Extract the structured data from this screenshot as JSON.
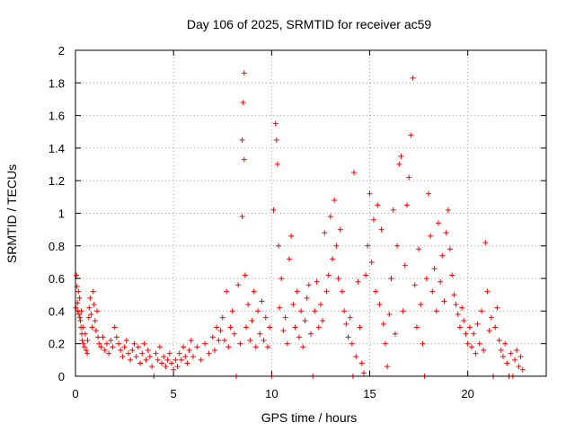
{
  "chart_data": {
    "type": "scatter",
    "title": "Day 106 of 2025, SRMTID for receiver ac59",
    "xlabel": "GPS time / hours",
    "ylabel": "SRMTID / TECUs",
    "xlim": [
      0,
      24
    ],
    "ylim": [
      0,
      2
    ],
    "xticks": [
      0,
      5,
      10,
      15,
      20
    ],
    "xtick_labels": [
      "0",
      "5",
      "10",
      "15",
      "20"
    ],
    "yticks": [
      0,
      0.2,
      0.4,
      0.6,
      0.8,
      1,
      1.2,
      1.4,
      1.6,
      1.8,
      2
    ],
    "ytick_labels": [
      "0",
      "0.2",
      "0.4",
      "0.6",
      "0.8",
      "1",
      "1.2",
      "1.4",
      "1.6",
      "1.8",
      "2"
    ],
    "grid": true,
    "marker": "+",
    "color": "#ff0000",
    "series": [
      {
        "name": "SRMTID",
        "points": [
          [
            0.02,
            0.42
          ],
          [
            0.05,
            0.62
          ],
          [
            0.08,
            0.55
          ],
          [
            0.1,
            0.45
          ],
          [
            0.12,
            0.4
          ],
          [
            0.15,
            0.52
          ],
          [
            0.18,
            0.38
          ],
          [
            0.2,
            0.48
          ],
          [
            0.22,
            0.36
          ],
          [
            0.25,
            0.34
          ],
          [
            0.28,
            0.3
          ],
          [
            0.3,
            0.4
          ],
          [
            0.32,
            0.26
          ],
          [
            0.35,
            0.22
          ],
          [
            0.38,
            0.3
          ],
          [
            0.4,
            0.2
          ],
          [
            0.45,
            0.18
          ],
          [
            0.5,
            0.26
          ],
          [
            0.55,
            0.16
          ],
          [
            0.6,
            0.14
          ],
          [
            0.62,
            0.22
          ],
          [
            0.68,
            0.36
          ],
          [
            0.7,
            0.42
          ],
          [
            0.75,
            0.48
          ],
          [
            0.8,
            0.38
          ],
          [
            0.85,
            0.3
          ],
          [
            0.9,
            0.52
          ],
          [
            0.95,
            0.44
          ],
          [
            1.0,
            0.34
          ],
          [
            1.05,
            0.28
          ],
          [
            1.1,
            0.4
          ],
          [
            1.15,
            0.24
          ],
          [
            1.2,
            0.2
          ],
          [
            1.3,
            0.18
          ],
          [
            1.4,
            0.24
          ],
          [
            1.5,
            0.16
          ],
          [
            1.6,
            0.2
          ],
          [
            1.7,
            0.14
          ],
          [
            1.8,
            0.22
          ],
          [
            1.9,
            0.18
          ],
          [
            2.0,
            0.3
          ],
          [
            2.1,
            0.24
          ],
          [
            2.2,
            0.2
          ],
          [
            2.3,
            0.16
          ],
          [
            2.4,
            0.12
          ],
          [
            2.5,
            0.18
          ],
          [
            2.6,
            0.22
          ],
          [
            2.7,
            0.14
          ],
          [
            2.8,
            0.1
          ],
          [
            2.9,
            0.16
          ],
          [
            3.0,
            0.2
          ],
          [
            3.1,
            0.12
          ],
          [
            3.2,
            0.18
          ],
          [
            3.3,
            0.08
          ],
          [
            3.4,
            0.14
          ],
          [
            3.5,
            0.2
          ],
          [
            3.6,
            0.1
          ],
          [
            3.7,
            0.16
          ],
          [
            3.8,
            0.12
          ],
          [
            3.9,
            0.06
          ],
          [
            4.0,
            0.0
          ],
          [
            4.1,
            0.14
          ],
          [
            4.2,
            0.1
          ],
          [
            4.3,
            0.18
          ],
          [
            4.4,
            0.08
          ],
          [
            4.5,
            0.12
          ],
          [
            4.6,
            0.06
          ],
          [
            4.7,
            0.1
          ],
          [
            4.8,
            0.14
          ],
          [
            4.9,
            0.08
          ],
          [
            5.0,
            0.04
          ],
          [
            5.1,
            0.1
          ],
          [
            5.2,
            0.06
          ],
          [
            5.3,
            0.14
          ],
          [
            5.4,
            0.1
          ],
          [
            5.5,
            0.18
          ],
          [
            5.6,
            0.12
          ],
          [
            5.7,
            0.08
          ],
          [
            5.8,
            0.16
          ],
          [
            5.9,
            0.22
          ],
          [
            6.0,
            0.12
          ],
          [
            6.2,
            0.18
          ],
          [
            6.4,
            0.1
          ],
          [
            6.6,
            0.2
          ],
          [
            6.8,
            0.14
          ],
          [
            7.0,
            0.24
          ],
          [
            7.1,
            0.16
          ],
          [
            7.2,
            0.3
          ],
          [
            7.3,
            0.22
          ],
          [
            7.4,
            0.28
          ],
          [
            7.5,
            0.36
          ],
          [
            7.6,
            0.22
          ],
          [
            7.7,
            0.52
          ],
          [
            7.8,
            0.18
          ],
          [
            7.9,
            0.3
          ],
          [
            8.0,
            0.4
          ],
          [
            8.1,
            0.26
          ],
          [
            8.2,
            0.0
          ],
          [
            8.3,
            0.56
          ],
          [
            8.4,
            0.2
          ],
          [
            8.5,
            0.98
          ],
          [
            8.5,
            1.45
          ],
          [
            8.55,
            1.68
          ],
          [
            8.6,
            1.86
          ],
          [
            8.6,
            1.33
          ],
          [
            8.65,
            0.62
          ],
          [
            8.7,
            0.3
          ],
          [
            8.8,
            0.44
          ],
          [
            8.9,
            0.22
          ],
          [
            9.0,
            0.34
          ],
          [
            9.1,
            0.52
          ],
          [
            9.2,
            0.18
          ],
          [
            9.3,
            0.4
          ],
          [
            9.4,
            0.26
          ],
          [
            9.5,
            0.46
          ],
          [
            9.6,
            0.22
          ],
          [
            9.7,
            0.36
          ],
          [
            9.8,
            0.18
          ],
          [
            9.9,
            0.3
          ],
          [
            10.0,
            0.0
          ],
          [
            10.1,
            1.02
          ],
          [
            10.2,
            1.55
          ],
          [
            10.25,
            1.45
          ],
          [
            10.3,
            1.3
          ],
          [
            10.35,
            0.8
          ],
          [
            10.4,
            0.42
          ],
          [
            10.5,
            0.6
          ],
          [
            10.6,
            0.28
          ],
          [
            10.7,
            0.36
          ],
          [
            10.8,
            0.2
          ],
          [
            10.9,
            0.72
          ],
          [
            11.0,
            0.86
          ],
          [
            11.1,
            0.44
          ],
          [
            11.2,
            0.3
          ],
          [
            11.3,
            0.52
          ],
          [
            11.4,
            0.24
          ],
          [
            11.5,
            0.4
          ],
          [
            11.6,
            0.18
          ],
          [
            11.7,
            0.34
          ],
          [
            11.8,
            0.48
          ],
          [
            11.9,
            0.56
          ],
          [
            12.0,
            0.26
          ],
          [
            12.1,
            0.0
          ],
          [
            12.2,
            0.4
          ],
          [
            12.3,
            0.58
          ],
          [
            12.4,
            0.3
          ],
          [
            12.5,
            0.44
          ],
          [
            12.6,
            0.34
          ],
          [
            12.7,
            0.88
          ],
          [
            12.8,
            0.52
          ],
          [
            12.9,
            0.62
          ],
          [
            13.0,
            0.98
          ],
          [
            13.1,
            0.72
          ],
          [
            13.2,
            1.08
          ],
          [
            13.3,
            0.8
          ],
          [
            13.4,
            0.6
          ],
          [
            13.5,
            0.9
          ],
          [
            13.6,
            0.52
          ],
          [
            13.7,
            0.4
          ],
          [
            13.8,
            0.32
          ],
          [
            13.9,
            0.24
          ],
          [
            14.0,
            0.36
          ],
          [
            14.1,
            0.2
          ],
          [
            14.15,
            0.0
          ],
          [
            14.2,
            1.25
          ],
          [
            14.3,
            0.12
          ],
          [
            14.4,
            0.58
          ],
          [
            14.5,
            0.3
          ],
          [
            14.6,
            0.08
          ],
          [
            14.7,
            0.02
          ],
          [
            14.8,
            0.62
          ],
          [
            14.9,
            0.8
          ],
          [
            15.0,
            1.12
          ],
          [
            15.1,
            0.7
          ],
          [
            15.2,
            0.96
          ],
          [
            15.3,
            0.52
          ],
          [
            15.4,
            1.05
          ],
          [
            15.5,
            0.44
          ],
          [
            15.6,
            0.9
          ],
          [
            15.7,
            0.32
          ],
          [
            15.8,
            0.2
          ],
          [
            15.9,
            0.06
          ],
          [
            16.0,
            0.38
          ],
          [
            16.1,
            0.6
          ],
          [
            16.2,
            1.02
          ],
          [
            16.3,
            0.26
          ],
          [
            16.4,
            0.8
          ],
          [
            16.5,
            1.3
          ],
          [
            16.6,
            1.35
          ],
          [
            16.7,
            0.4
          ],
          [
            16.8,
            0.68
          ],
          [
            16.9,
            1.05
          ],
          [
            17.0,
            1.22
          ],
          [
            17.1,
            1.48
          ],
          [
            17.2,
            1.83
          ],
          [
            17.3,
            0.56
          ],
          [
            17.4,
            0.3
          ],
          [
            17.5,
            0.78
          ],
          [
            17.6,
            0.44
          ],
          [
            17.7,
            0.2
          ],
          [
            17.8,
            0.0
          ],
          [
            17.9,
            0.6
          ],
          [
            18.0,
            1.12
          ],
          [
            18.1,
            0.86
          ],
          [
            18.2,
            0.52
          ],
          [
            18.3,
            0.66
          ],
          [
            18.4,
            0.4
          ],
          [
            18.5,
            0.94
          ],
          [
            18.6,
            0.58
          ],
          [
            18.7,
            0.74
          ],
          [
            18.8,
            0.46
          ],
          [
            18.9,
            0.88
          ],
          [
            19.0,
            1.02
          ],
          [
            19.1,
            0.78
          ],
          [
            19.2,
            0.62
          ],
          [
            19.3,
            0.5
          ],
          [
            19.4,
            0.44
          ],
          [
            19.5,
            0.38
          ],
          [
            19.6,
            0.3
          ],
          [
            19.7,
            0.42
          ],
          [
            19.8,
            0.34
          ],
          [
            19.9,
            0.26
          ],
          [
            20.0,
            0.2
          ],
          [
            20.1,
            0.3
          ],
          [
            20.2,
            0.18
          ],
          [
            20.3,
            0.26
          ],
          [
            20.4,
            0.14
          ],
          [
            20.5,
            0.32
          ],
          [
            20.6,
            0.2
          ],
          [
            20.7,
            0.4
          ],
          [
            20.8,
            0.16
          ],
          [
            20.9,
            0.82
          ],
          [
            21.0,
            0.52
          ],
          [
            21.1,
            0.28
          ],
          [
            21.2,
            0.36
          ],
          [
            21.3,
            0.0
          ],
          [
            21.4,
            0.3
          ],
          [
            21.5,
            0.42
          ],
          [
            21.6,
            0.22
          ],
          [
            21.7,
            0.16
          ],
          [
            21.8,
            0.12
          ],
          [
            21.9,
            0.2
          ],
          [
            22.0,
            0.08
          ],
          [
            22.1,
            0.0
          ],
          [
            22.2,
            0.14
          ],
          [
            22.3,
            0.0
          ],
          [
            22.4,
            0.1
          ],
          [
            22.5,
            0.16
          ],
          [
            22.6,
            0.06
          ],
          [
            22.7,
            0.12
          ],
          [
            22.8,
            0.04
          ]
        ]
      }
    ]
  }
}
